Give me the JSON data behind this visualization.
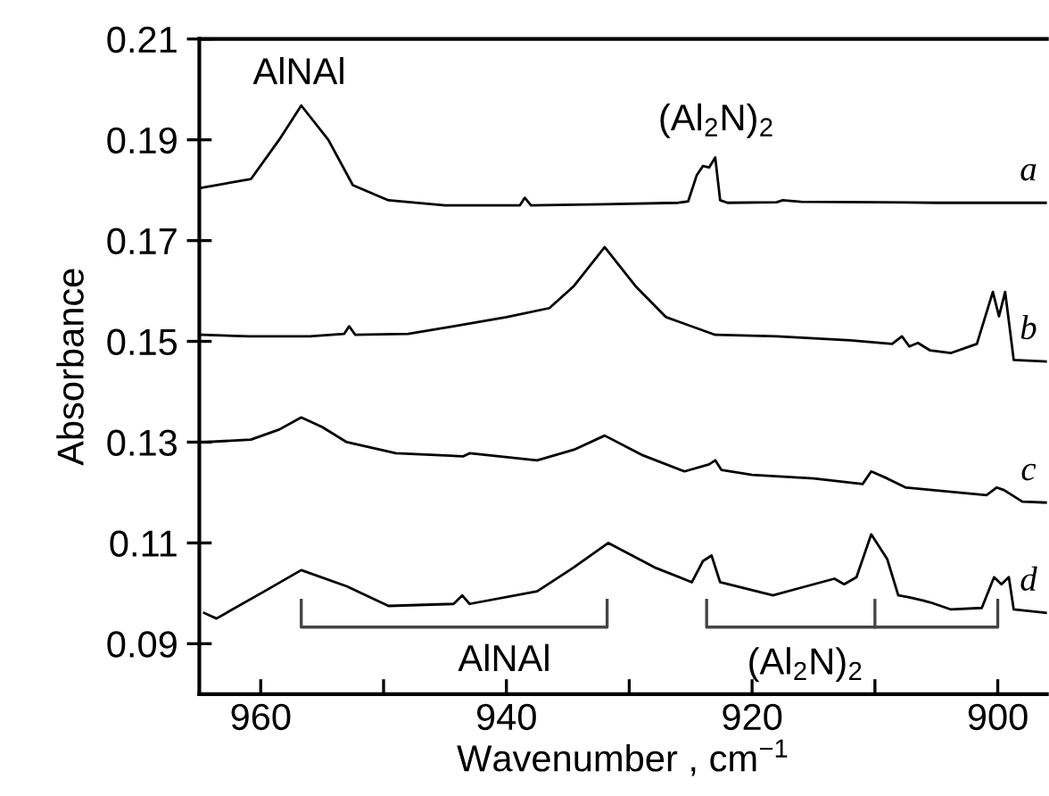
{
  "chart_data": {
    "type": "line",
    "xlabel": "Wavenumber , cm$^{−1}$",
    "ylabel": "Absorbance",
    "xlim": [
      965,
      896
    ],
    "xticks": [
      960,
      {
        "value": 950,
        "label": null
      },
      940,
      {
        "value": 930,
        "label": null
      },
      920,
      {
        "value": 910,
        "label": null
      },
      900
    ],
    "ylim": [
      0.08,
      0.21
    ],
    "yticks": [
      0.09,
      0.11,
      0.13,
      0.15,
      0.17,
      0.19,
      0.21
    ],
    "grid": false,
    "legend": false,
    "marker": "none",
    "line_style": "solid",
    "series": [
      {
        "name": "a",
        "color": "#000000",
        "x": [
          964.8,
          960.8,
          958.5,
          956.7,
          954.5,
          952.5,
          949.6,
          945,
          938.9,
          938.5,
          938,
          932,
          926,
          925.2,
          924.5,
          924,
          923.5,
          923,
          922.6,
          922,
          918,
          917.5,
          916,
          910,
          905,
          900,
          896
        ],
        "values": [
          0.1805,
          0.1822,
          0.19,
          0.1968,
          0.19,
          0.181,
          0.178,
          0.177,
          0.177,
          0.1785,
          0.177,
          0.1772,
          0.1775,
          0.1778,
          0.183,
          0.1848,
          0.1845,
          0.1865,
          0.178,
          0.1775,
          0.1776,
          0.178,
          0.1777,
          0.1776,
          0.1775,
          0.1775,
          0.1775
        ]
      },
      {
        "name": "b",
        "color": "#000000",
        "x": [
          964.8,
          961,
          956,
          953.2,
          952.8,
          952.3,
          948,
          944.3,
          940,
          936.5,
          934.5,
          932,
          929.5,
          927,
          923,
          918,
          912,
          908.6,
          907.8,
          907.2,
          906.5,
          905.5,
          903.8,
          901.7,
          900.4,
          899.9,
          899.4,
          898.7,
          896
        ],
        "values": [
          0.1513,
          0.151,
          0.151,
          0.1515,
          0.153,
          0.1513,
          0.1515,
          0.153,
          0.1548,
          0.1566,
          0.161,
          0.1687,
          0.161,
          0.1548,
          0.1513,
          0.151,
          0.1502,
          0.1495,
          0.151,
          0.149,
          0.1497,
          0.1482,
          0.1477,
          0.1495,
          0.1598,
          0.155,
          0.1598,
          0.1463,
          0.146
        ]
      },
      {
        "name": "c",
        "color": "#000000",
        "x": [
          964.6,
          960.8,
          958.5,
          956.7,
          955,
          953,
          949,
          943.5,
          943,
          937.5,
          934.5,
          932,
          929,
          925.5,
          923.5,
          923,
          922.5,
          920,
          915,
          911,
          910.3,
          909,
          907.5,
          904,
          900.9,
          900.1,
          899.5,
          898,
          896
        ],
        "values": [
          0.13,
          0.1305,
          0.1325,
          0.1349,
          0.133,
          0.13,
          0.1278,
          0.1272,
          0.1278,
          0.1264,
          0.1285,
          0.1313,
          0.1275,
          0.1242,
          0.1256,
          0.1264,
          0.1245,
          0.1235,
          0.1228,
          0.1217,
          0.1242,
          0.1228,
          0.121,
          0.1202,
          0.1195,
          0.121,
          0.1205,
          0.1182,
          0.118
        ]
      },
      {
        "name": "d",
        "color": "#000000",
        "x": [
          964.6,
          963.6,
          959.7,
          956.7,
          953,
          949.6,
          944.3,
          943.6,
          943,
          937.5,
          934.6,
          931.7,
          927.8,
          924.9,
          924,
          923.3,
          922.6,
          918.3,
          916.2,
          913.3,
          912.5,
          911.5,
          910.3,
          909,
          908.1,
          907.2,
          906.1,
          905.5,
          903.8,
          901.3,
          900.3,
          899.7,
          899.1,
          898.7,
          896
        ],
        "values": [
          0.0961,
          0.095,
          0.1004,
          0.1046,
          0.1014,
          0.0975,
          0.0979,
          0.0996,
          0.0979,
          0.1004,
          0.105,
          0.11,
          0.105,
          0.1022,
          0.1064,
          0.1075,
          0.1022,
          0.0996,
          0.101,
          0.1029,
          0.1018,
          0.1032,
          0.1117,
          0.1068,
          0.0996,
          0.0992,
          0.0986,
          0.0982,
          0.0968,
          0.0971,
          0.1032,
          0.1018,
          0.1032,
          0.0968,
          0.0961
        ]
      }
    ],
    "annotations": [
      "AlNAl",
      "(Al$_{2}$N)$_{2}$",
      "AlNAl",
      "(Al$_{2}$N)$_{2}$"
    ]
  }
}
